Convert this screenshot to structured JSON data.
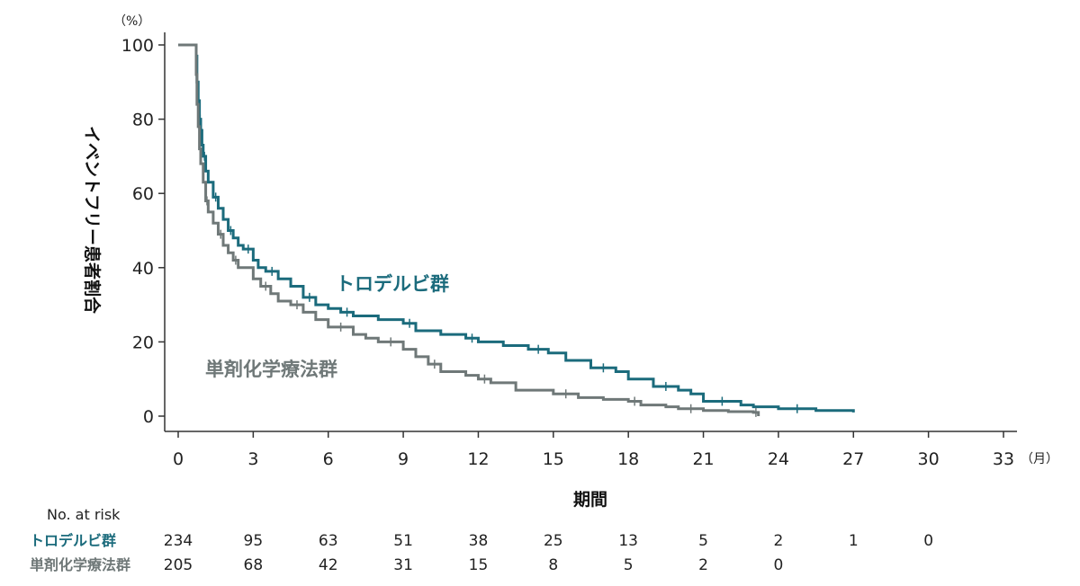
{
  "chart_data": {
    "type": "line",
    "step": true,
    "y_unit": "（%）",
    "x_unit": "（月）",
    "ylabel": "イベントフリー患者割合",
    "xlabel": "期間",
    "xlim": [
      0,
      33
    ],
    "ylim": [
      0,
      100
    ],
    "x_ticks": [
      0,
      3,
      6,
      9,
      12,
      15,
      18,
      21,
      24,
      27,
      30,
      33
    ],
    "y_ticks": [
      0,
      20,
      40,
      60,
      80,
      100
    ],
    "grid": false,
    "colors": {
      "trodelvy": "#1b6b7c",
      "chemo": "#6f7878"
    },
    "series": [
      {
        "name": "トロデルビ群",
        "color": "#1b6b7c",
        "x": [
          0,
          0.7,
          0.72,
          0.75,
          0.8,
          0.85,
          0.9,
          0.95,
          1.0,
          1.1,
          1.2,
          1.4,
          1.6,
          1.8,
          2.0,
          2.2,
          2.4,
          2.6,
          3.0,
          3.2,
          3.5,
          4.0,
          4.5,
          5.0,
          5.5,
          6.0,
          6.5,
          7.0,
          8.0,
          9.0,
          9.5,
          10.5,
          11.5,
          12.0,
          13.0,
          14.0,
          14.8,
          15.5,
          16.5,
          17.5,
          18.0,
          19.0,
          20.0,
          20.5,
          21.0,
          22.5,
          23.0,
          24.0,
          25.5,
          27.0
        ],
        "y": [
          100,
          100,
          97,
          90,
          85,
          80,
          77,
          73,
          70,
          66,
          63,
          59,
          56,
          53,
          50,
          48,
          46,
          45,
          42,
          40,
          39,
          37,
          35,
          32,
          30,
          29,
          28,
          27,
          26,
          25,
          23,
          22,
          21,
          20,
          19,
          18,
          17,
          15,
          13,
          12,
          10,
          8,
          7,
          6,
          4,
          3,
          2.5,
          2,
          1.5,
          1
        ]
      },
      {
        "name": "単剤化学療法群",
        "color": "#6f7878",
        "x": [
          0,
          0.7,
          0.72,
          0.75,
          0.8,
          0.85,
          0.9,
          1.0,
          1.1,
          1.2,
          1.4,
          1.6,
          1.8,
          2.0,
          2.2,
          2.4,
          3.0,
          3.3,
          3.7,
          4.0,
          4.5,
          5.0,
          5.5,
          6.0,
          7.0,
          7.5,
          8.0,
          9.0,
          9.5,
          10.0,
          10.5,
          11.5,
          12.0,
          12.5,
          13.5,
          15.0,
          16.0,
          17.0,
          18.0,
          18.5,
          19.5,
          20.0,
          21.0,
          22.0,
          23.0,
          23.2
        ],
        "y": [
          100,
          100,
          92,
          84,
          78,
          72,
          68,
          63,
          58,
          55,
          52,
          49,
          46,
          44,
          42,
          40,
          37,
          35,
          33,
          31,
          30,
          28,
          26,
          24,
          22,
          21,
          20,
          18,
          16,
          14,
          12,
          11,
          10,
          9,
          7,
          6,
          5,
          4.5,
          4,
          3,
          2.5,
          2,
          1.5,
          1.2,
          1,
          0
        ]
      }
    ],
    "number_at_risk": {
      "title": "No. at risk",
      "x": [
        0,
        3,
        6,
        9,
        12,
        15,
        18,
        21,
        24,
        27,
        30
      ],
      "rows": [
        {
          "label": "トロデルビ群",
          "color": "#1b6b7c",
          "values": [
            "234",
            "95",
            "63",
            "51",
            "38",
            "25",
            "13",
            "5",
            "2",
            "1",
            "0"
          ]
        },
        {
          "label": "単剤化学療法群",
          "color": "#6f7878",
          "values": [
            "205",
            "68",
            "42",
            "31",
            "15",
            "8",
            "5",
            "2",
            "0"
          ]
        }
      ]
    }
  }
}
